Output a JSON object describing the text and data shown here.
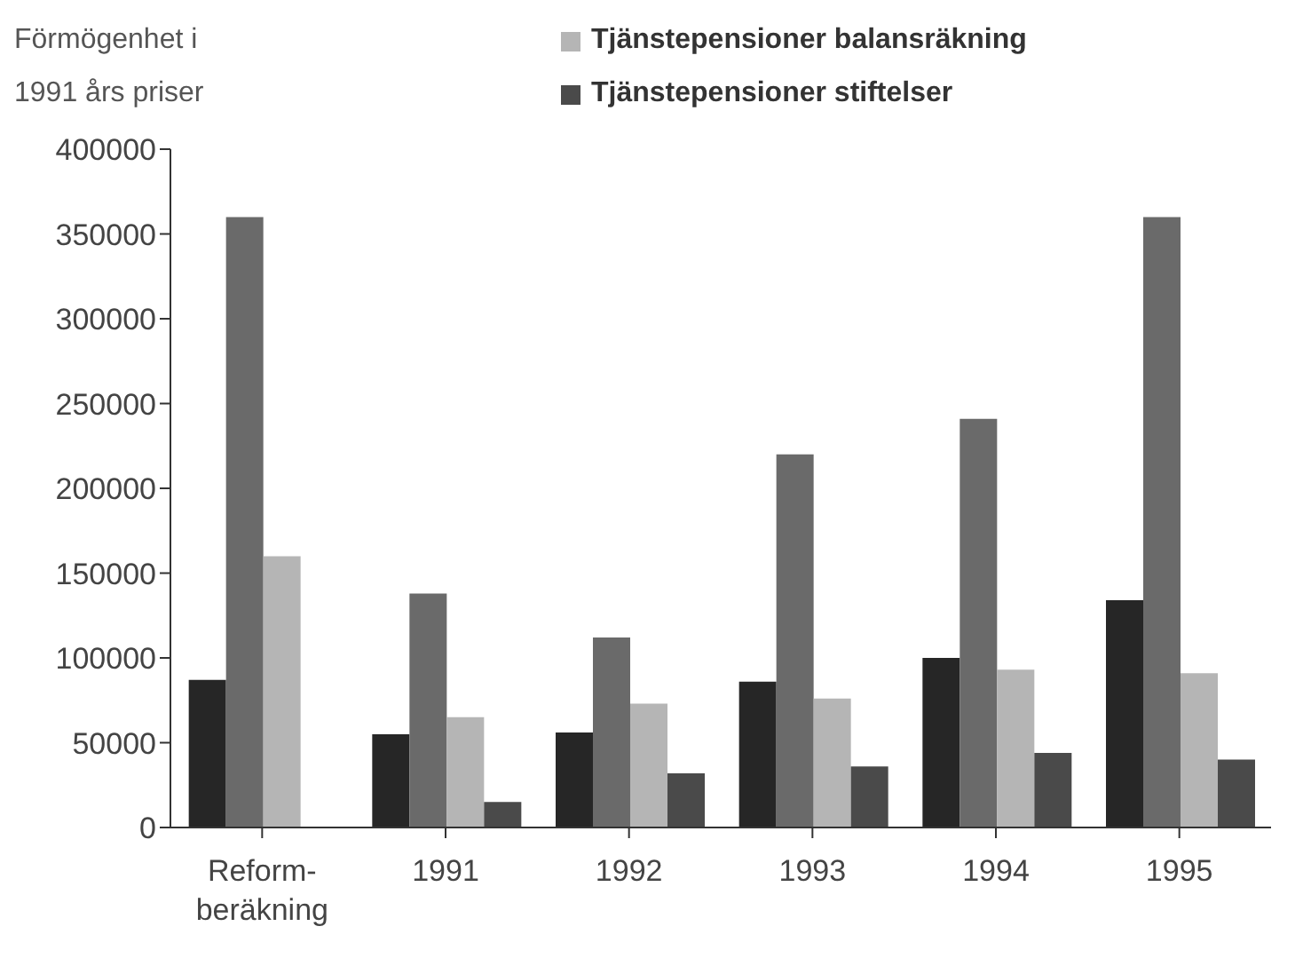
{
  "chart_data": {
    "type": "bar",
    "ylabel": "Förmögenhet i\n1991 års priser",
    "categories": [
      "Reform-beräkning",
      "1991",
      "1992",
      "1993",
      "1994",
      "1995"
    ],
    "series": [
      {
        "color": "#262626",
        "values": [
          87000,
          55000,
          56000,
          86000,
          100000,
          134000
        ]
      },
      {
        "color": "#6a6a6a",
        "values": [
          360000,
          138000,
          112000,
          220000,
          241000,
          360000
        ]
      },
      {
        "name": "Tjänstepensioner balansräkning",
        "color": "#b5b5b5",
        "values": [
          160000,
          65000,
          73000,
          76000,
          93000,
          91000
        ]
      },
      {
        "name": "Tjänstepensioner stiftelser",
        "color": "#4a4a4a",
        "values": [
          null,
          15000,
          32000,
          36000,
          44000,
          40000
        ]
      }
    ],
    "ylim": [
      0,
      400000
    ],
    "yticks": [
      0,
      50000,
      100000,
      150000,
      200000,
      250000,
      300000,
      350000,
      400000
    ],
    "grid": false,
    "legend": "top right"
  }
}
